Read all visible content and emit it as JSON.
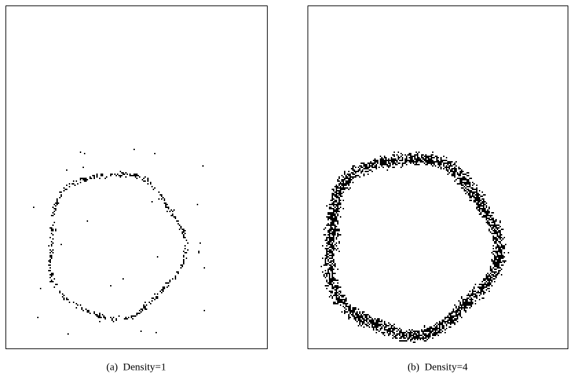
{
  "panels": [
    {
      "caption": "(a)  Density=1"
    },
    {
      "caption": "(b)  Density=4"
    }
  ]
}
